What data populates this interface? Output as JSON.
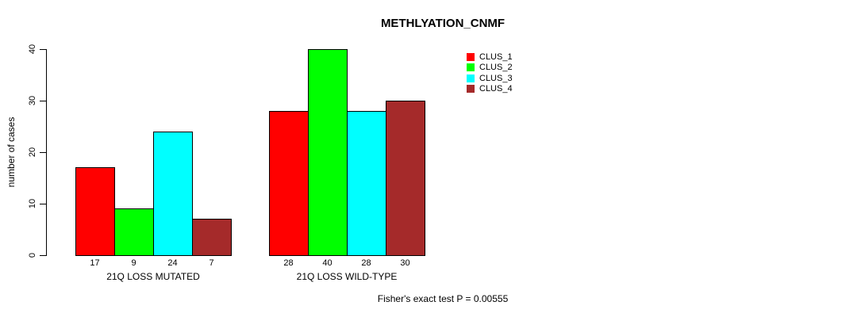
{
  "page": {
    "background_color": "#FFFFFF",
    "text_color": "#000000"
  },
  "chart_data": {
    "type": "bar",
    "title": "METHLYATION_CNMF",
    "xlabel": "",
    "ylabel": "number of cases",
    "ylim": [
      0,
      40
    ],
    "yticks": [
      0,
      10,
      20,
      30,
      40
    ],
    "grid": false,
    "legend_position": "top-right",
    "categories": [
      "21Q LOSS MUTATED",
      "21Q LOSS WILD-TYPE"
    ],
    "series": [
      {
        "name": "CLUS_1",
        "color": "#FF0000",
        "values": [
          17,
          28
        ]
      },
      {
        "name": "CLUS_2",
        "color": "#00FF00",
        "values": [
          9,
          40
        ]
      },
      {
        "name": "CLUS_3",
        "color": "#00FFFF",
        "values": [
          24,
          28
        ]
      },
      {
        "name": "CLUS_4",
        "color": "#A52A2A",
        "values": [
          7,
          30
        ]
      }
    ],
    "bar_border_color": "#000000",
    "annotation": "Fisher's exact test P = 0.00555"
  }
}
